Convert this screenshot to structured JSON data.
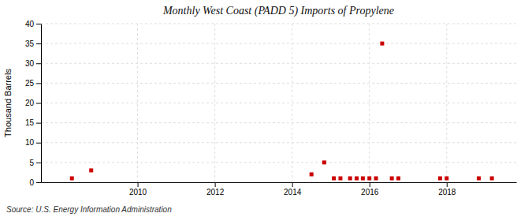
{
  "chart_data": {
    "type": "scatter",
    "title": "Monthly West Coast (PADD 5) Imports of Propylene",
    "ylabel": "Thousand Barrels",
    "annotations": [
      "Source: U.S. Energy Information Administration"
    ],
    "x": [
      2008.3,
      2008.8,
      2014.5,
      2014.83,
      2015.08,
      2015.25,
      2015.5,
      2015.67,
      2015.83,
      2016.0,
      2016.17,
      2016.33,
      2016.58,
      2016.75,
      2017.83,
      2018.0,
      2018.83,
      2019.17
    ],
    "values": [
      1,
      3,
      2,
      5,
      1,
      1,
      1,
      1,
      1,
      1,
      1,
      35,
      1,
      1,
      1,
      1,
      1,
      1
    ],
    "color": "#cc0000",
    "marker": "square",
    "xlim": [
      2007.5,
      2019.8
    ],
    "xticks": [
      2010,
      2012,
      2014,
      2016,
      2018
    ],
    "ylim": [
      0,
      40
    ],
    "yticks": [
      0,
      5,
      10,
      15,
      20,
      25,
      30,
      35,
      40
    ],
    "grid": true
  }
}
